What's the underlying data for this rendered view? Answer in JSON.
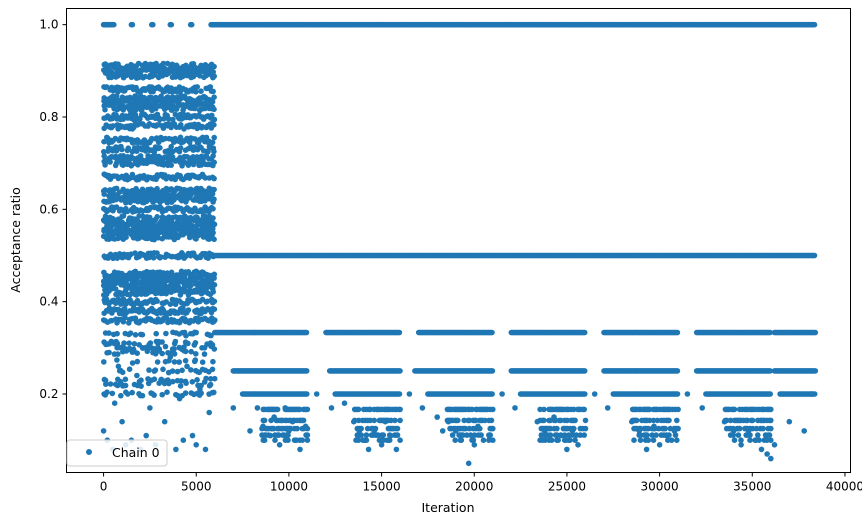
{
  "chart_data": {
    "type": "scatter",
    "title": "",
    "xlabel": "Iteration",
    "ylabel": "Acceptance ratio",
    "xlim": [
      -2000,
      40300
    ],
    "ylim": [
      0.03,
      1.035
    ],
    "xticks": [
      0,
      5000,
      10000,
      15000,
      20000,
      25000,
      30000,
      35000,
      40000
    ],
    "yticks": [
      0.2,
      0.4,
      0.6,
      0.8,
      1.0
    ],
    "ytick_labels": [
      "0.2",
      "0.4",
      "0.6",
      "0.8",
      "1.0"
    ],
    "grid": false,
    "legend_position": "lower-left",
    "marker": "circle",
    "color": "#1f77b4",
    "series": [
      {
        "name": "Chain 0",
        "bands": [
          {
            "y": 1.0,
            "segments": [
              [
                0,
                600
              ],
              [
                1500,
                1600
              ],
              [
                2600,
                2700
              ],
              [
                3600,
                3700
              ],
              [
                4700,
                4800
              ],
              [
                5800,
                38400
              ]
            ]
          },
          {
            "y": 0.5,
            "segments": [
              [
                5800,
                38400
              ]
            ]
          },
          {
            "y": 0.3333,
            "segments": [
              [
                6000,
                11000
              ],
              [
                12000,
                16000
              ],
              [
                17000,
                21000
              ],
              [
                22000,
                26000
              ],
              [
                27000,
                31000
              ],
              [
                32000,
                36000
              ],
              [
                36200,
                38400
              ]
            ]
          },
          {
            "y": 0.25,
            "segments": [
              [
                7000,
                11000
              ],
              [
                12200,
                16000
              ],
              [
                16800,
                21000
              ],
              [
                22000,
                26000
              ],
              [
                27000,
                31000
              ],
              [
                32000,
                36000
              ],
              [
                36200,
                38400
              ]
            ]
          },
          {
            "y": 0.2,
            "segments": [
              [
                7500,
                11000
              ],
              [
                12500,
                16000
              ],
              [
                17500,
                21000
              ],
              [
                22500,
                26000
              ],
              [
                27500,
                31000
              ],
              [
                32500,
                36000
              ],
              [
                36500,
                38400
              ]
            ]
          }
        ],
        "scattered": [
          [
            0,
            0.12
          ],
          [
            100,
            0.2
          ],
          [
            200,
            0.1
          ],
          [
            300,
            0.29
          ],
          [
            500,
            0.08
          ],
          [
            600,
            0.18
          ],
          [
            800,
            0.26
          ],
          [
            1000,
            0.14
          ],
          [
            1200,
            0.09
          ],
          [
            1300,
            0.2
          ],
          [
            1500,
            0.1
          ],
          [
            1800,
            0.24
          ],
          [
            2000,
            0.08
          ],
          [
            2100,
            0.3
          ],
          [
            2300,
            0.11
          ],
          [
            2500,
            0.17
          ],
          [
            2800,
            0.09
          ],
          [
            3100,
            0.23
          ],
          [
            3300,
            0.14
          ],
          [
            3600,
            0.28
          ],
          [
            3900,
            0.08
          ],
          [
            4100,
            0.19
          ],
          [
            4300,
            0.1
          ],
          [
            4500,
            0.26
          ],
          [
            4800,
            0.11
          ],
          [
            5000,
            0.09
          ],
          [
            5200,
            0.21
          ],
          [
            5500,
            0.08
          ],
          [
            5700,
            0.16
          ],
          [
            5900,
            0.27
          ],
          [
            6000,
            0.36
          ],
          [
            7000,
            0.17
          ],
          [
            7900,
            0.12
          ],
          [
            8300,
            0.17
          ],
          [
            8600,
            0.13
          ],
          [
            9000,
            0.11
          ],
          [
            9200,
            0.15
          ],
          [
            9500,
            0.09
          ],
          [
            9800,
            0.17
          ],
          [
            10000,
            0.12
          ],
          [
            10200,
            0.14
          ],
          [
            10400,
            0.1
          ],
          [
            10600,
            0.08
          ],
          [
            10900,
            0.13
          ],
          [
            11500,
            0.2
          ],
          [
            12300,
            0.17
          ],
          [
            13000,
            0.18
          ],
          [
            13500,
            0.14
          ],
          [
            13800,
            0.12
          ],
          [
            14000,
            0.1
          ],
          [
            14300,
            0.08
          ],
          [
            14600,
            0.12
          ],
          [
            15000,
            0.09
          ],
          [
            15200,
            0.14
          ],
          [
            15500,
            0.11
          ],
          [
            15800,
            0.08
          ],
          [
            16500,
            0.2
          ],
          [
            17200,
            0.17
          ],
          [
            18000,
            0.15
          ],
          [
            18300,
            0.12
          ],
          [
            18600,
            0.14
          ],
          [
            19000,
            0.12
          ],
          [
            19300,
            0.1
          ],
          [
            19700,
            0.05
          ],
          [
            20000,
            0.09
          ],
          [
            20200,
            0.13
          ],
          [
            20500,
            0.1
          ],
          [
            20800,
            0.11
          ],
          [
            21500,
            0.2
          ],
          [
            22200,
            0.17
          ],
          [
            23400,
            0.14
          ],
          [
            23800,
            0.12
          ],
          [
            24300,
            0.15
          ],
          [
            24700,
            0.11
          ],
          [
            25000,
            0.08
          ],
          [
            25300,
            0.12
          ],
          [
            25600,
            0.09
          ],
          [
            26500,
            0.2
          ],
          [
            27200,
            0.17
          ],
          [
            28500,
            0.14
          ],
          [
            28900,
            0.12
          ],
          [
            29300,
            0.08
          ],
          [
            29700,
            0.13
          ],
          [
            30000,
            0.09
          ],
          [
            30400,
            0.11
          ],
          [
            30800,
            0.12
          ],
          [
            31500,
            0.2
          ],
          [
            32300,
            0.17
          ],
          [
            33500,
            0.14
          ],
          [
            34000,
            0.12
          ],
          [
            34400,
            0.09
          ],
          [
            34800,
            0.12
          ],
          [
            35200,
            0.1
          ],
          [
            35500,
            0.08
          ],
          [
            35800,
            0.07
          ],
          [
            36000,
            0.06
          ],
          [
            36200,
            0.09
          ],
          [
            37000,
            0.14
          ],
          [
            37800,
            0.12
          ],
          [
            38200,
            0.2
          ]
        ]
      }
    ]
  }
}
